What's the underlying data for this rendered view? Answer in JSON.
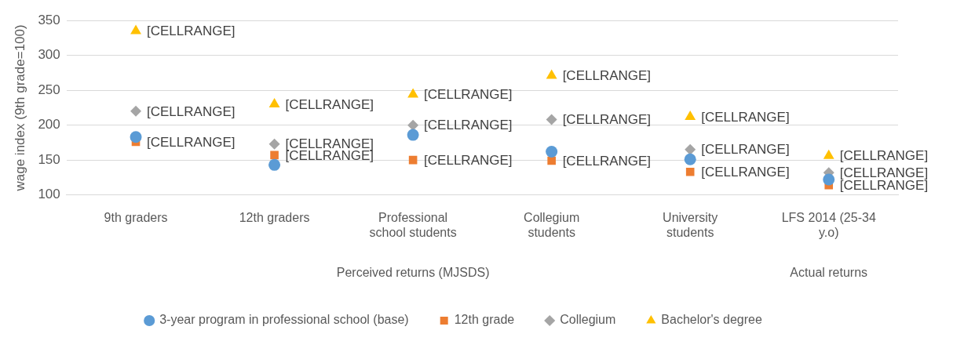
{
  "chart_data": {
    "type": "scatter",
    "ylabel": "wage index (9th grade=100)",
    "categories": [
      "9th graders",
      "12th graders",
      "Professional school students",
      "Collegium students",
      "University students",
      "LFS 2014 (25-34 y.o)"
    ],
    "annotations": [
      "Perceived returns (MJSDS)",
      "Actual returns"
    ],
    "ylim": [
      100,
      350
    ],
    "yticks": [
      100,
      150,
      200,
      250,
      300,
      350
    ],
    "grid": "y",
    "legend": "bottom",
    "series": [
      {
        "name": "3-year program in professional school (base)",
        "color": "#5b9bd5",
        "marker": "circle",
        "values": [
          183,
          143,
          186,
          162,
          151,
          122
        ]
      },
      {
        "name": "12th grade",
        "color": "#ed7d31",
        "marker": "square",
        "values": [
          176,
          157,
          150,
          149,
          133,
          114
        ],
        "value_labels": [
          "[CELLRANGE]",
          "[CELLRANGE]",
          "[CELLRANGE]",
          "[CELLRANGE]",
          "[CELLRANGE]",
          "[CELLRANGE]"
        ]
      },
      {
        "name": "Collegium",
        "color": "#a5a5a5",
        "marker": "diamond",
        "values": [
          220,
          173,
          200,
          208,
          165,
          132
        ],
        "value_labels": [
          "[CELLRANGE]",
          "[CELLRANGE]",
          "[CELLRANGE]",
          "[CELLRANGE]",
          "[CELLRANGE]",
          "[CELLRANGE]"
        ]
      },
      {
        "name": "Bachelor's degree",
        "color": "#ffc000",
        "marker": "triangle",
        "values": [
          335,
          230,
          244,
          271,
          212,
          156
        ],
        "value_labels": [
          "[CELLRANGE]",
          "[CELLRANGE]",
          "[CELLRANGE]",
          "[CELLRANGE]",
          "[CELLRANGE]",
          "[CELLRANGE]"
        ]
      }
    ]
  }
}
